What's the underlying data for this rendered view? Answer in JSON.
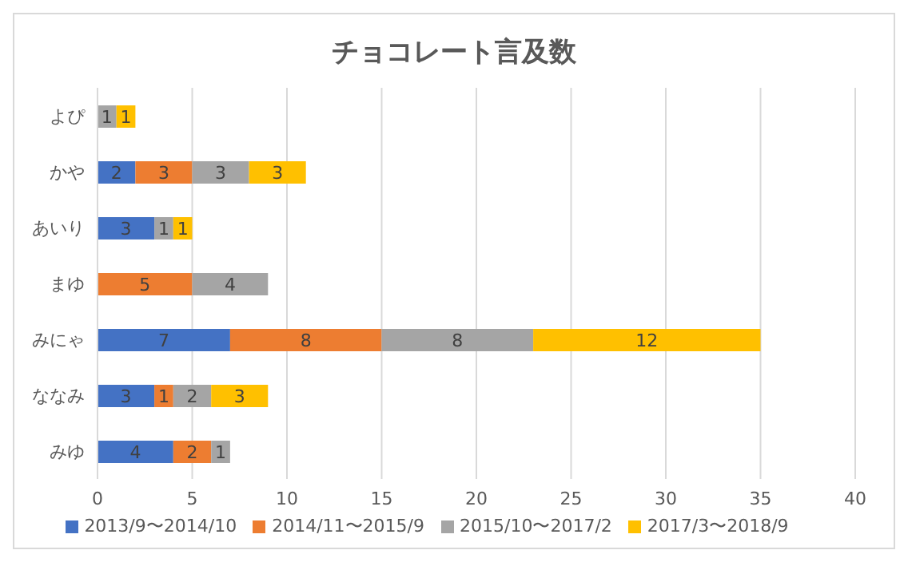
{
  "chart_data": {
    "type": "bar",
    "title": "チョコレート言及数",
    "orientation": "horizontal",
    "stacked": true,
    "categories": [
      "よぴ",
      "かや",
      "あいり",
      "まゆ",
      "みにゃ",
      "ななみ",
      "みゆ"
    ],
    "series": [
      {
        "name": "2013/9〜2014/10",
        "color": "#4472c4",
        "values": [
          null,
          2,
          3,
          null,
          7,
          3,
          4
        ]
      },
      {
        "name": "2014/11〜2015/9",
        "color": "#ed7d31",
        "values": [
          null,
          3,
          null,
          5,
          8,
          1,
          2
        ]
      },
      {
        "name": "2015/10〜2017/2",
        "color": "#a5a5a5",
        "values": [
          1,
          3,
          1,
          4,
          8,
          2,
          1
        ]
      },
      {
        "name": "2017/3〜2018/9",
        "color": "#ffc000",
        "values": [
          1,
          3,
          1,
          null,
          12,
          3,
          null
        ]
      }
    ],
    "xlim": [
      0,
      40
    ],
    "xticks": [
      0,
      5,
      10,
      15,
      20,
      25,
      30,
      35,
      40
    ],
    "grid": "x",
    "legend": "bottom",
    "data_labels": true
  }
}
